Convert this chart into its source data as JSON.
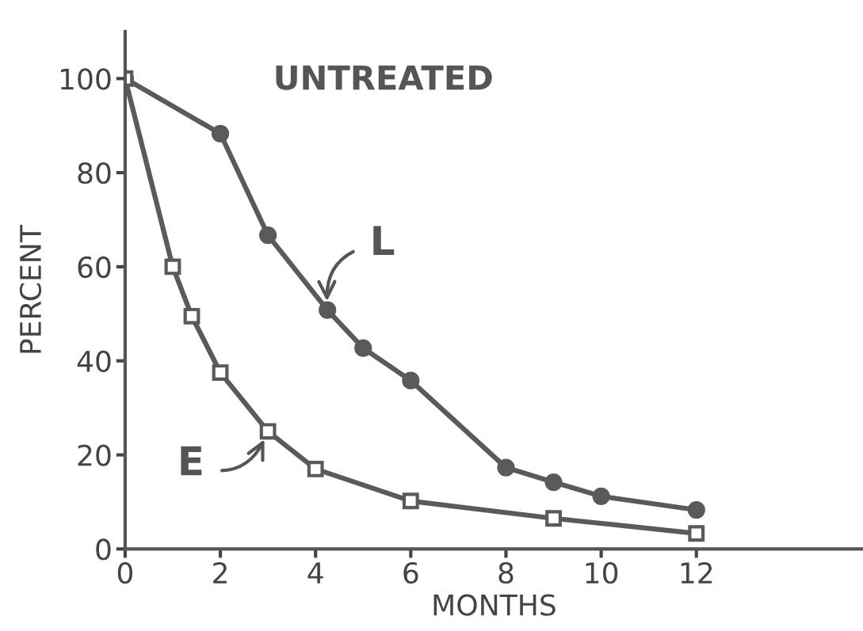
{
  "chart_data": {
    "type": "line",
    "title": "UNTREATED",
    "xlabel": "MONTHS",
    "ylabel": "PERCENT",
    "xlim": [
      0,
      15.5
    ],
    "ylim": [
      0,
      110
    ],
    "xticks": [
      0,
      2,
      4,
      6,
      8,
      10,
      12
    ],
    "yticks": [
      0,
      20,
      40,
      60,
      80,
      100
    ],
    "grid": false,
    "legend": false,
    "line_style": "solid",
    "series": [
      {
        "color": "#5a5a5a",
        "marker": "circle",
        "x": [
          0,
          2,
          3,
          4.25,
          5,
          6,
          8,
          9,
          10,
          12
        ],
        "values": [
          100,
          88.3,
          66.7,
          50.8,
          42.7,
          35.8,
          17.3,
          14.2,
          11.2,
          8.3
        ]
      },
      {
        "color": "#5a5a5a",
        "marker": "square",
        "x": [
          0,
          1,
          1.4,
          2,
          3,
          4,
          6,
          9,
          12
        ],
        "values": [
          100,
          60,
          49.5,
          37.5,
          25,
          17,
          10.2,
          6.5,
          3.3
        ]
      }
    ],
    "annotations": [
      {
        "text": "L",
        "x": 4.25,
        "y": 50.8
      },
      {
        "text": "E",
        "x": 3,
        "y": 25
      }
    ]
  }
}
